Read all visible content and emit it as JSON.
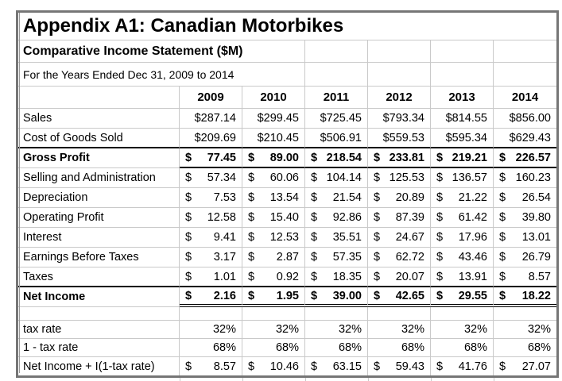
{
  "page": {
    "title": "Appendix A1: Canadian Motorbikes",
    "subtitle": "Comparative Income Statement ($M)",
    "period_line": "For the Years Ended Dec 31, 2009 to 2014"
  },
  "colors": {
    "frame": "#767676",
    "gridline": "#c9c9c9",
    "text": "#000000",
    "background": "#ffffff"
  },
  "table": {
    "years": [
      "2009",
      "2010",
      "2011",
      "2012",
      "2013",
      "2014"
    ],
    "currency_symbol": "$",
    "rows": [
      {
        "label": "Sales",
        "format": "currency",
        "bold": false,
        "values": [
          "$287.14",
          "$299.45",
          "$725.45",
          "$793.34",
          "$814.55",
          "$856.00"
        ]
      },
      {
        "label": "Cost of Goods Sold",
        "format": "currency",
        "bold": false,
        "rule_below": true,
        "values": [
          "$209.69",
          "$210.45",
          "$506.91",
          "$559.53",
          "$595.34",
          "$629.43"
        ]
      },
      {
        "label": "Gross Profit",
        "format": "accounting",
        "bold": true,
        "bottom": "single",
        "values": [
          "77.45",
          "89.00",
          "218.54",
          "233.81",
          "219.21",
          "226.57"
        ]
      },
      {
        "label": "Selling and Administration",
        "format": "accounting",
        "bold": false,
        "values": [
          "57.34",
          "60.06",
          "104.14",
          "125.53",
          "136.57",
          "160.23"
        ]
      },
      {
        "label": "Depreciation",
        "format": "accounting",
        "bold": false,
        "values": [
          "7.53",
          "13.54",
          "21.54",
          "20.89",
          "21.22",
          "26.54"
        ]
      },
      {
        "label": "Operating Profit",
        "format": "accounting",
        "bold": false,
        "values": [
          "12.58",
          "15.40",
          "92.86",
          "87.39",
          "61.42",
          "39.80"
        ]
      },
      {
        "label": "Interest",
        "format": "accounting",
        "bold": false,
        "values": [
          "9.41",
          "12.53",
          "35.51",
          "24.67",
          "17.96",
          "13.01"
        ]
      },
      {
        "label": "Earnings Before Taxes",
        "format": "accounting",
        "bold": false,
        "values": [
          "3.17",
          "2.87",
          "57.35",
          "62.72",
          "43.46",
          "26.79"
        ]
      },
      {
        "label": "Taxes",
        "format": "accounting",
        "bold": false,
        "rule_below": true,
        "values": [
          "1.01",
          "0.92",
          "18.35",
          "20.07",
          "13.91",
          "8.57"
        ]
      },
      {
        "label": "Net Income",
        "format": "accounting",
        "bold": true,
        "bottom": "double",
        "values": [
          "2.16",
          "1.95",
          "39.00",
          "42.65",
          "29.55",
          "18.22"
        ]
      },
      {
        "label": "",
        "format": "blank",
        "bold": false,
        "values": [
          "",
          "",
          "",
          "",
          "",
          ""
        ]
      },
      {
        "label": "tax rate",
        "format": "percent",
        "bold": false,
        "values": [
          "32%",
          "32%",
          "32%",
          "32%",
          "32%",
          "32%"
        ]
      },
      {
        "label": "1 - tax rate",
        "format": "percent",
        "bold": false,
        "values": [
          "68%",
          "68%",
          "68%",
          "68%",
          "68%",
          "68%"
        ]
      },
      {
        "label": "Net Income + I(1-tax rate)",
        "format": "accounting",
        "bold": false,
        "last_row": true,
        "values": [
          "8.57",
          "10.46",
          "63.15",
          "59.43",
          "41.76",
          "27.07"
        ]
      }
    ]
  }
}
